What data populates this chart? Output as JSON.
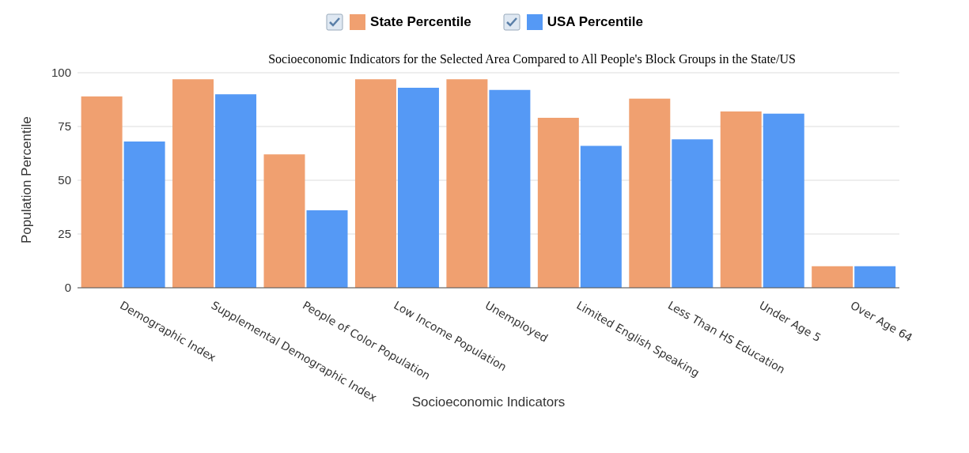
{
  "chart_data": {
    "type": "bar",
    "title": "Socioeconomic Indicators for the Selected Area Compared to All People's Block Groups in the State/US",
    "xlabel": "Socioeconomic Indicators",
    "ylabel": "Population Percentile",
    "categories": [
      "Demographic Index",
      "Supplemental Demographic Index",
      "People of Color Population",
      "Low Income Population",
      "Unemployed",
      "Limited English Speaking",
      "Less Than HS Education",
      "Under Age 5",
      "Over Age 64"
    ],
    "series": [
      {
        "name": "State Percentile",
        "color": "#f0a070",
        "values": [
          89,
          97,
          62,
          97,
          97,
          79,
          88,
          82,
          10
        ]
      },
      {
        "name": "USA Percentile",
        "color": "#5599f5",
        "values": [
          68,
          90,
          36,
          93,
          92,
          66,
          69,
          81,
          10
        ]
      }
    ],
    "ylim": [
      0,
      100
    ],
    "yticks": [
      0,
      25,
      50,
      75,
      100
    ],
    "grid": "y",
    "legend": "top"
  }
}
